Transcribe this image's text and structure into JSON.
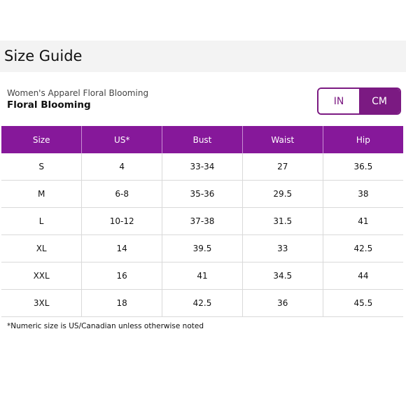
{
  "header": {
    "title": "Size Guide"
  },
  "product": {
    "subtitle": "Women's Apparel Floral Blooming",
    "name": "Floral Blooming"
  },
  "unit_toggle": {
    "options": [
      "IN",
      "CM"
    ],
    "selected": "CM"
  },
  "table": {
    "headers": [
      "Size",
      "US*",
      "Bust",
      "Waist",
      "Hip"
    ],
    "rows": [
      [
        "S",
        "4",
        "33-34",
        "27",
        "36.5"
      ],
      [
        "M",
        "6-8",
        "35-36",
        "29.5",
        "38"
      ],
      [
        "L",
        "10-12",
        "37-38",
        "31.5",
        "41"
      ],
      [
        "XL",
        "14",
        "39.5",
        "33",
        "42.5"
      ],
      [
        "XXL",
        "16",
        "41",
        "34.5",
        "44"
      ],
      [
        "3XL",
        "18",
        "42.5",
        "36",
        "45.5"
      ]
    ]
  },
  "footnote": "*Numeric size is US/Canadian unless otherwise noted",
  "colors": {
    "accent": "#86189a",
    "toggle_active": "#7b1a82",
    "header_bg": "#f3f3f3"
  }
}
